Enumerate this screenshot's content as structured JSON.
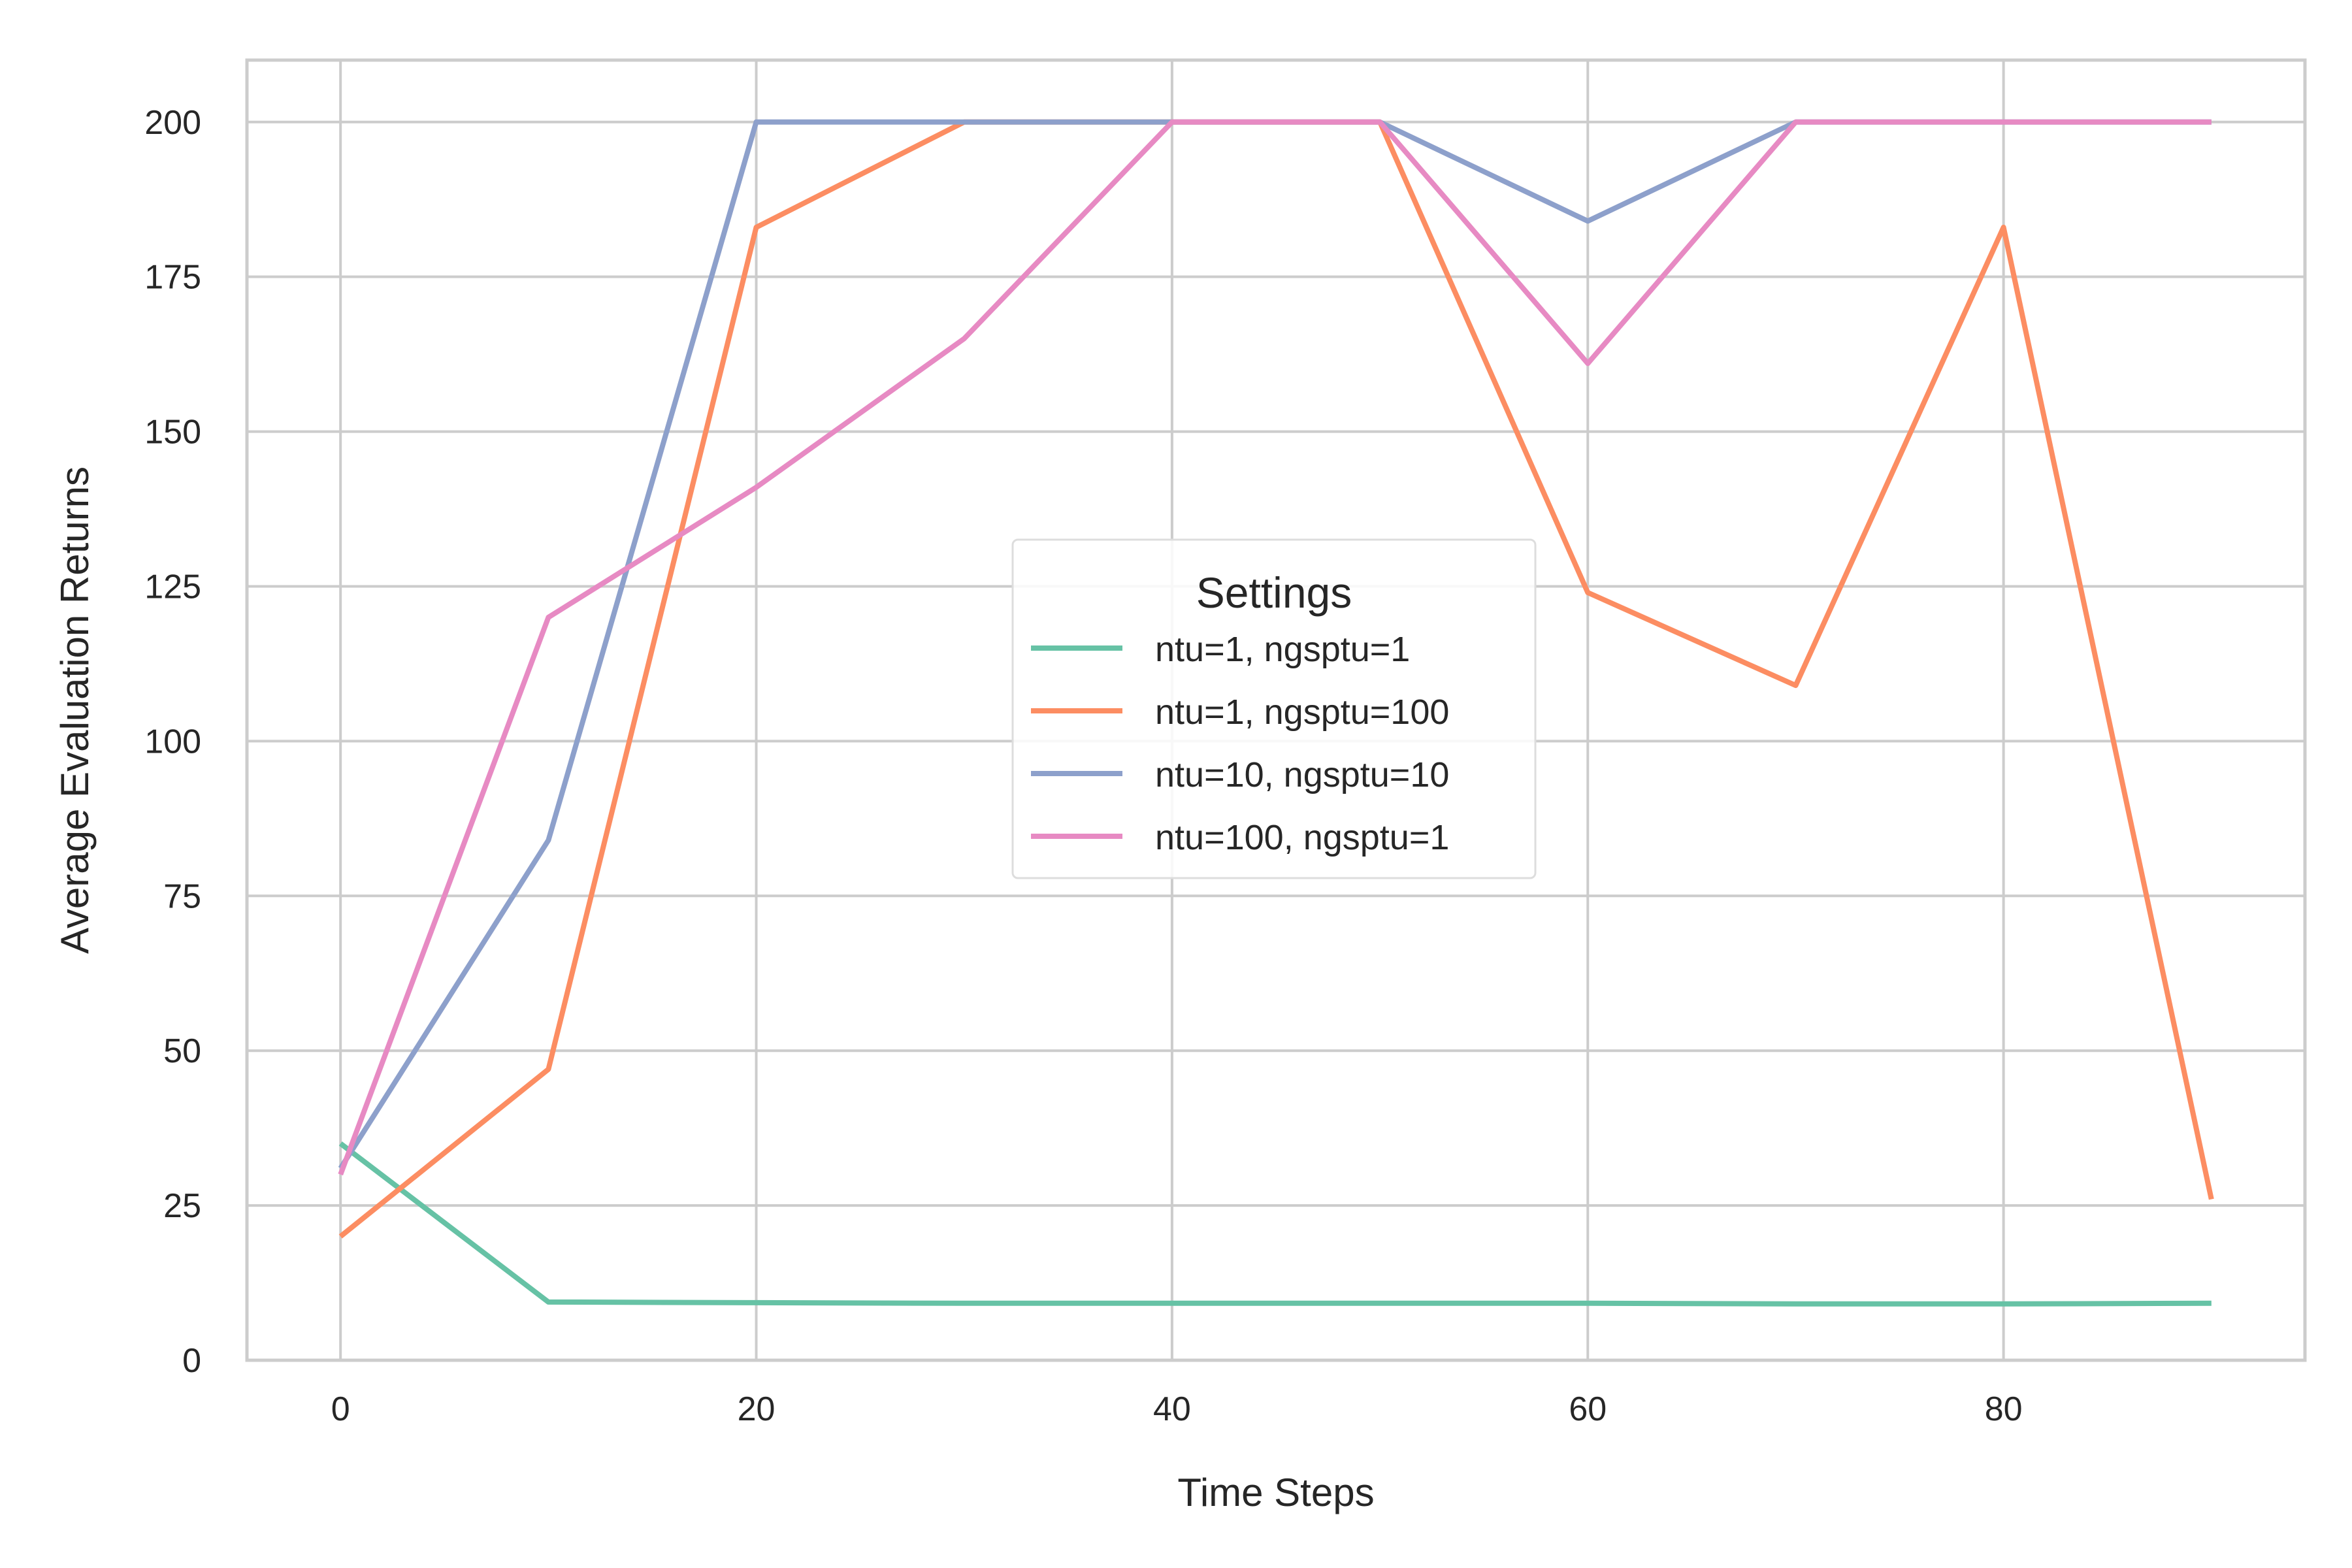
{
  "chart_data": {
    "type": "line",
    "xlabel": "Time Steps",
    "ylabel": "Average Evaluation Returns",
    "xlim": [
      -4.5,
      94.5
    ],
    "ylim": [
      0,
      210
    ],
    "xticks": [
      0,
      20,
      40,
      60,
      80
    ],
    "yticks": [
      0,
      25,
      50,
      75,
      100,
      125,
      150,
      175,
      200
    ],
    "grid": true,
    "legend": {
      "title": "Settings",
      "placement": "center"
    },
    "x": [
      0,
      10,
      20,
      30,
      40,
      50,
      60,
      70,
      80,
      90
    ],
    "series": [
      {
        "name": "ntu=1, ngsptu=1",
        "color": "#66c2a5",
        "values": [
          35,
          9.4,
          9.3,
          9.2,
          9.2,
          9.2,
          9.2,
          9.1,
          9.1,
          9.2
        ]
      },
      {
        "name": "ntu=1, ngsptu=100",
        "color": "#fc8d62",
        "values": [
          20,
          47,
          183,
          200,
          200,
          200,
          124,
          109,
          183,
          26
        ]
      },
      {
        "name": "ntu=10, ngsptu=10",
        "color": "#8da0cb",
        "values": [
          31,
          84,
          200,
          200,
          200,
          200,
          184,
          200,
          200,
          200
        ]
      },
      {
        "name": "ntu=100, ngsptu=1",
        "color": "#e78ac3",
        "values": [
          30,
          120,
          141,
          165,
          200,
          200,
          161,
          200,
          200,
          200
        ]
      }
    ]
  }
}
